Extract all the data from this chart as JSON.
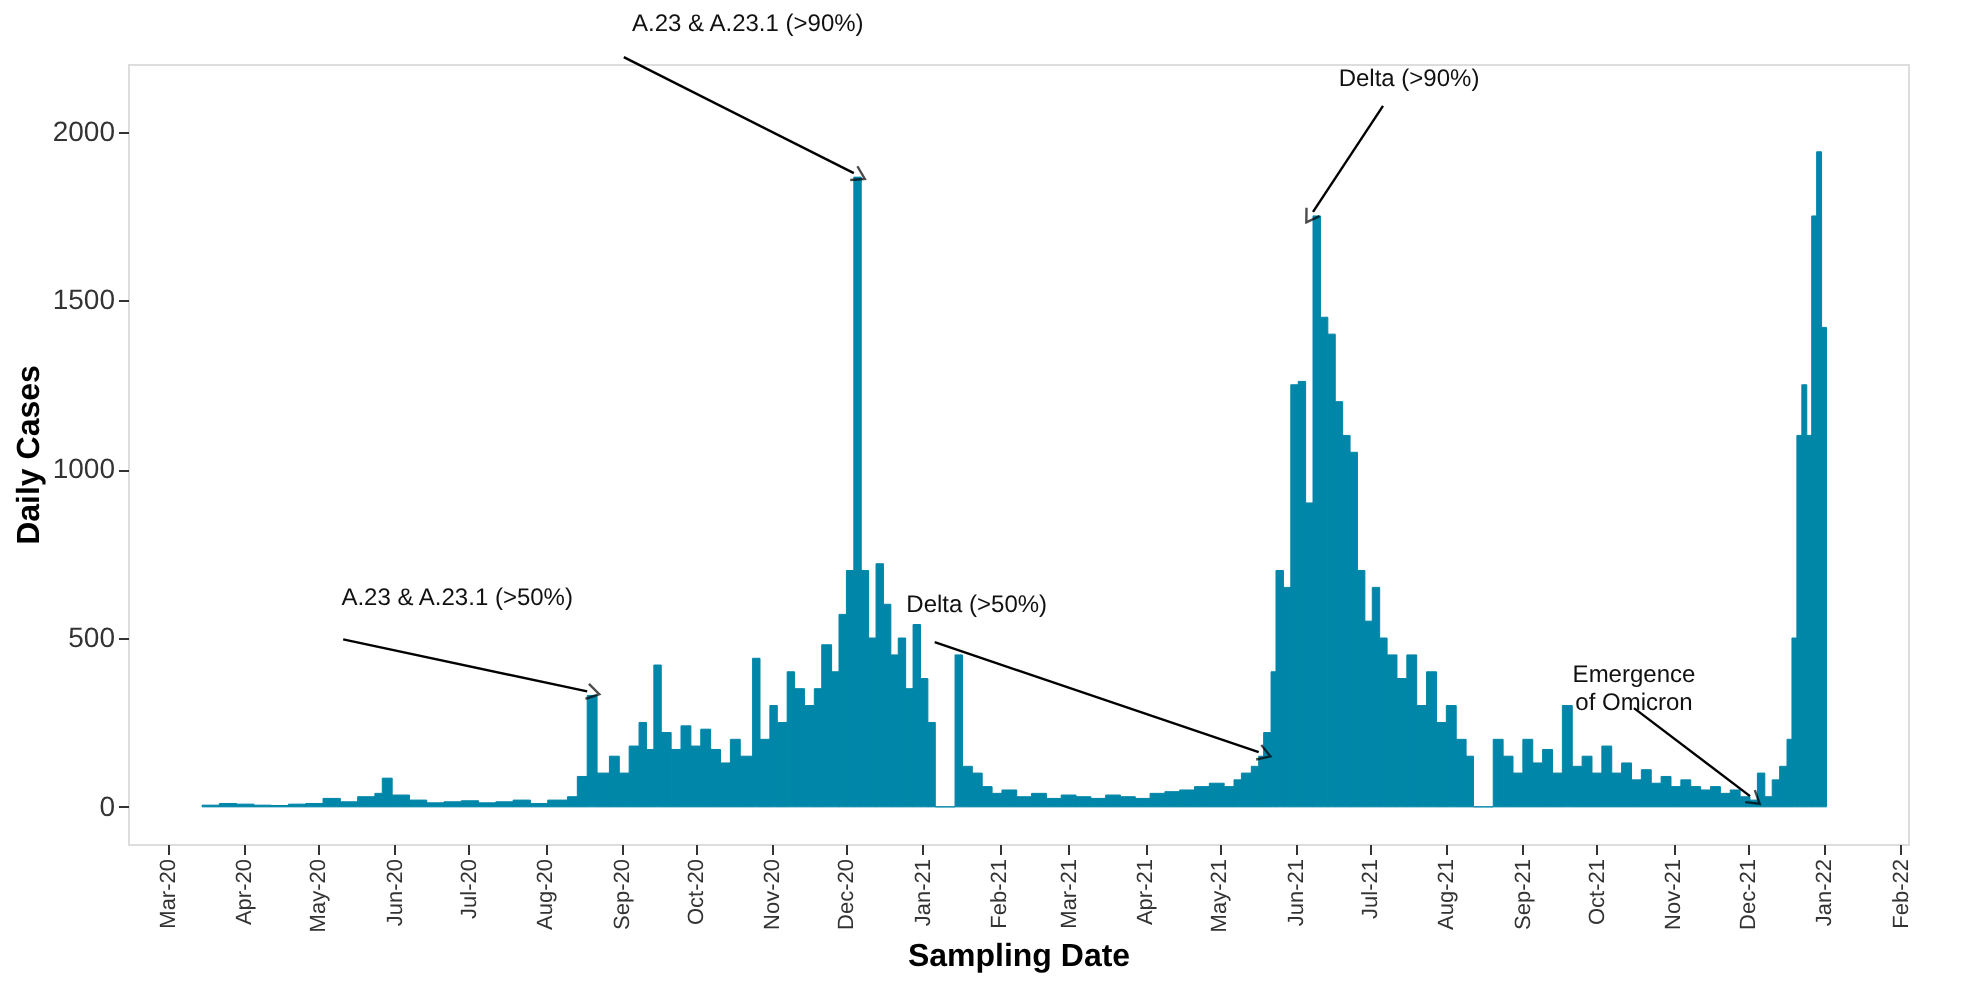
{
  "chart_data": {
    "type": "bar",
    "xlabel": "Sampling Date",
    "ylabel": "Daily Cases",
    "x": [
      "2020-03-15",
      "2020-03-22",
      "2020-03-29",
      "2020-04-05",
      "2020-04-12",
      "2020-04-19",
      "2020-04-26",
      "2020-05-03",
      "2020-05-10",
      "2020-05-17",
      "2020-05-24",
      "2020-05-27",
      "2020-05-31",
      "2020-06-07",
      "2020-06-14",
      "2020-06-21",
      "2020-06-28",
      "2020-07-05",
      "2020-07-12",
      "2020-07-19",
      "2020-07-26",
      "2020-08-02",
      "2020-08-10",
      "2020-08-14",
      "2020-08-18",
      "2020-08-22",
      "2020-08-27",
      "2020-08-31",
      "2020-09-04",
      "2020-09-08",
      "2020-09-11",
      "2020-09-14",
      "2020-09-17",
      "2020-09-21",
      "2020-09-25",
      "2020-09-29",
      "2020-10-03",
      "2020-10-07",
      "2020-10-11",
      "2020-10-15",
      "2020-10-19",
      "2020-10-24",
      "2020-10-27",
      "2020-10-31",
      "2020-11-03",
      "2020-11-07",
      "2020-11-10",
      "2020-11-14",
      "2020-11-18",
      "2020-11-21",
      "2020-11-25",
      "2020-11-28",
      "2020-12-01",
      "2020-12-04",
      "2020-12-07",
      "2020-12-10",
      "2020-12-13",
      "2020-12-16",
      "2020-12-19",
      "2020-12-22",
      "2020-12-25",
      "2020-12-28",
      "2020-12-31",
      "2021-01-03",
      "2021-01-06",
      "2021-01-10",
      "2021-01-14",
      "2021-01-17",
      "2021-01-21",
      "2021-01-25",
      "2021-01-29",
      "2021-02-02",
      "2021-02-08",
      "2021-02-14",
      "2021-02-20",
      "2021-02-26",
      "2021-03-04",
      "2021-03-10",
      "2021-03-16",
      "2021-03-22",
      "2021-03-28",
      "2021-04-03",
      "2021-04-09",
      "2021-04-15",
      "2021-04-21",
      "2021-04-27",
      "2021-05-03",
      "2021-05-07",
      "2021-05-10",
      "2021-05-14",
      "2021-05-17",
      "2021-05-19",
      "2021-05-22",
      "2021-05-24",
      "2021-05-27",
      "2021-05-30",
      "2021-06-02",
      "2021-06-05",
      "2021-06-08",
      "2021-06-11",
      "2021-06-14",
      "2021-06-17",
      "2021-06-20",
      "2021-06-23",
      "2021-06-26",
      "2021-06-29",
      "2021-07-02",
      "2021-07-05",
      "2021-07-08",
      "2021-07-12",
      "2021-07-16",
      "2021-07-20",
      "2021-07-24",
      "2021-07-28",
      "2021-08-01",
      "2021-08-05",
      "2021-08-09",
      "2021-08-12",
      "2021-08-16",
      "2021-08-20",
      "2021-08-24",
      "2021-08-28",
      "2021-09-01",
      "2021-09-05",
      "2021-09-09",
      "2021-09-13",
      "2021-09-17",
      "2021-09-21",
      "2021-09-25",
      "2021-09-29",
      "2021-10-03",
      "2021-10-07",
      "2021-10-11",
      "2021-10-15",
      "2021-10-19",
      "2021-10-23",
      "2021-10-27",
      "2021-10-31",
      "2021-11-04",
      "2021-11-08",
      "2021-11-12",
      "2021-11-16",
      "2021-11-20",
      "2021-11-24",
      "2021-11-28",
      "2021-12-02",
      "2021-12-05",
      "2021-12-08",
      "2021-12-11",
      "2021-12-14",
      "2021-12-17",
      "2021-12-19",
      "2021-12-21",
      "2021-12-23",
      "2021-12-25",
      "2021-12-27",
      "2021-12-29",
      "2021-12-31"
    ],
    "series": [
      {
        "color": "#0086a8",
        "values": [
          5,
          10,
          8,
          5,
          4,
          8,
          10,
          25,
          15,
          30,
          40,
          85,
          35,
          20,
          12,
          15,
          18,
          12,
          15,
          20,
          10,
          20,
          30,
          90,
          330,
          100,
          150,
          100,
          180,
          250,
          170,
          420,
          220,
          170,
          240,
          180,
          230,
          170,
          130,
          200,
          150,
          440,
          200,
          300,
          250,
          400,
          350,
          300,
          350,
          480,
          400,
          570,
          700,
          1865,
          700,
          500,
          720,
          600,
          450,
          500,
          350,
          540,
          380,
          250,
          0,
          0,
          450,
          120,
          100,
          60,
          40,
          50,
          30,
          40,
          25,
          35,
          30,
          25,
          35,
          30,
          25,
          40,
          45,
          50,
          60,
          70,
          60,
          80,
          100,
          120,
          150,
          220,
          400,
          700,
          650,
          1250,
          1260,
          900,
          1750,
          1450,
          1400,
          1200,
          1100,
          1050,
          700,
          550,
          650,
          500,
          450,
          380,
          450,
          300,
          400,
          250,
          300,
          200,
          150,
          0,
          0,
          200,
          150,
          100,
          200,
          130,
          170,
          100,
          300,
          120,
          150,
          100,
          180,
          100,
          130,
          80,
          110,
          70,
          90,
          60,
          80,
          60,
          50,
          60,
          40,
          50,
          30,
          20,
          100,
          30,
          80,
          120,
          200,
          500,
          1100,
          1250,
          1100,
          1750,
          1940,
          1420
        ]
      }
    ],
    "xlim": [
      "2020-02-14",
      "2022-02-04"
    ],
    "xticks": [
      {
        "value": "2020-03-01",
        "label": "Mar-20"
      },
      {
        "value": "2020-04-01",
        "label": "Apr-20"
      },
      {
        "value": "2020-05-01",
        "label": "May-20"
      },
      {
        "value": "2020-06-01",
        "label": "Jun-20"
      },
      {
        "value": "2020-07-01",
        "label": "Jul-20"
      },
      {
        "value": "2020-08-01",
        "label": "Aug-20"
      },
      {
        "value": "2020-09-01",
        "label": "Sep-20"
      },
      {
        "value": "2020-10-01",
        "label": "Oct-20"
      },
      {
        "value": "2020-11-01",
        "label": "Nov-20"
      },
      {
        "value": "2020-12-01",
        "label": "Dec-20"
      },
      {
        "value": "2021-01-01",
        "label": "Jan-21"
      },
      {
        "value": "2021-02-01",
        "label": "Feb-21"
      },
      {
        "value": "2021-03-01",
        "label": "Mar-21"
      },
      {
        "value": "2021-04-01",
        "label": "Apr-21"
      },
      {
        "value": "2021-05-01",
        "label": "May-21"
      },
      {
        "value": "2021-06-01",
        "label": "Jun-21"
      },
      {
        "value": "2021-07-01",
        "label": "Jul-21"
      },
      {
        "value": "2021-08-01",
        "label": "Aug-21"
      },
      {
        "value": "2021-09-01",
        "label": "Sep-21"
      },
      {
        "value": "2021-10-01",
        "label": "Oct-21"
      },
      {
        "value": "2021-11-01",
        "label": "Nov-21"
      },
      {
        "value": "2021-12-01",
        "label": "Dec-21"
      },
      {
        "value": "2022-01-01",
        "label": "Jan-22"
      },
      {
        "value": "2022-02-01",
        "label": "Feb-22"
      }
    ],
    "ylim": [
      -110,
      2200
    ],
    "yticks": [
      0,
      500,
      1000,
      1500,
      2000
    ],
    "grid": false,
    "annotations": [
      {
        "text": "A.23 & A.23.1 (>50%)",
        "x": "2020-08-18",
        "y": 330
      },
      {
        "text": "A.23 & A.23.1 (>90%)",
        "x": "2020-12-04",
        "y": 1865
      },
      {
        "text": "Delta (>50%)",
        "x": "2021-05-17",
        "y": 150
      },
      {
        "text": "Delta (>90%)",
        "x": "2021-06-08",
        "y": 1750
      },
      {
        "text": "Emergence\nof Omicron",
        "x": "2021-12-02",
        "y": 20
      }
    ]
  }
}
